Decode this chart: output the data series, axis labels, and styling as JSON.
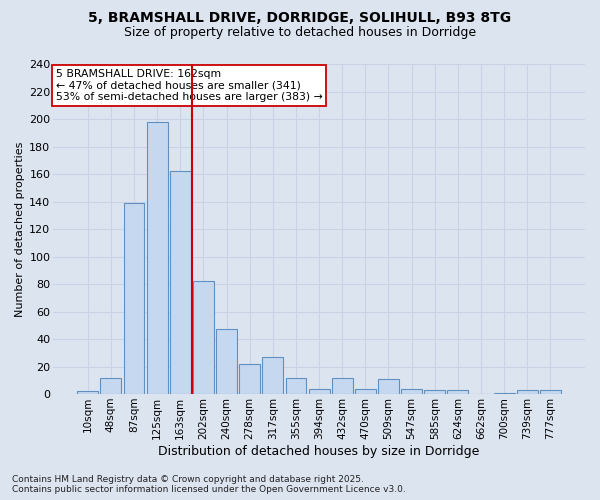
{
  "title_line1": "5, BRAMSHALL DRIVE, DORRIDGE, SOLIHULL, B93 8TG",
  "title_line2": "Size of property relative to detached houses in Dorridge",
  "xlabel": "Distribution of detached houses by size in Dorridge",
  "ylabel": "Number of detached properties",
  "bar_labels": [
    "10sqm",
    "48sqm",
    "87sqm",
    "125sqm",
    "163sqm",
    "202sqm",
    "240sqm",
    "278sqm",
    "317sqm",
    "355sqm",
    "394sqm",
    "432sqm",
    "470sqm",
    "509sqm",
    "547sqm",
    "585sqm",
    "624sqm",
    "662sqm",
    "700sqm",
    "739sqm",
    "777sqm"
  ],
  "bar_values": [
    2,
    12,
    139,
    198,
    162,
    82,
    47,
    22,
    27,
    12,
    4,
    12,
    4,
    11,
    4,
    3,
    3,
    0,
    1,
    3,
    3
  ],
  "bar_color": "#c5d8ef",
  "bar_edge_color": "#6090c0",
  "grid_color": "#c8d4e4",
  "background_color": "#dce4f0",
  "vline_x": 4.5,
  "vline_color": "#cc0000",
  "annotation_text": "5 BRAMSHALL DRIVE: 162sqm\n← 47% of detached houses are smaller (341)\n53% of semi-detached houses are larger (383) →",
  "annotation_box_facecolor": "#ffffff",
  "annotation_box_edgecolor": "#cc0000",
  "footer_text": "Contains HM Land Registry data © Crown copyright and database right 2025.\nContains public sector information licensed under the Open Government Licence v3.0.",
  "ylim_max": 240,
  "yticks": [
    0,
    20,
    40,
    60,
    80,
    100,
    120,
    140,
    160,
    180,
    200,
    220,
    240
  ]
}
